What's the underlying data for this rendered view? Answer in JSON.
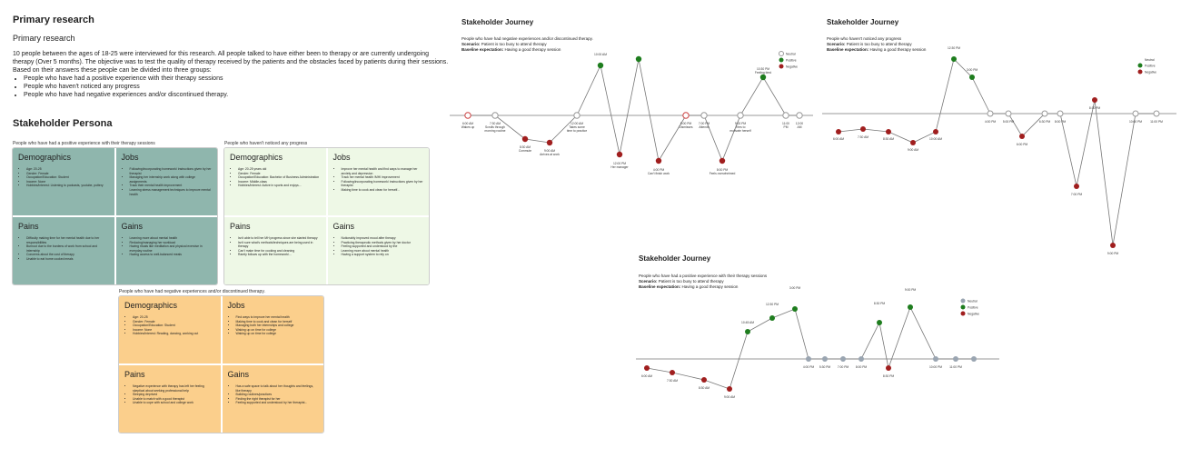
{
  "research": {
    "title": "Primary research",
    "subtitle": "Primary research",
    "intro": "10 people between the ages of 18-25 were interviewed for this research. All people talked to have either been to therapy or are currently undergoing therapy (Over 5 months). The objective was to test the quality of therapy received by the patients and the obstacles faced by patients during their sessions. Based on their answers these people can be divided into three groups:",
    "groups": [
      "People who have had a positive experience with their therapy sessions",
      "People who haven't noticed any progress",
      "People who have had negative experiences and/or discontinued therapy."
    ]
  },
  "persona": {
    "title": "Stakeholder Persona",
    "cards": [
      {
        "caption": "People who have had a positive experience with their therapy sessions",
        "color": "#8fb6ad",
        "demographics": [
          "Age: 20-25",
          "Gender: Female",
          "Occupation/Education: Student",
          "Income: None",
          "Hobbies/Interest: Listening to podcasts, youtube, pottery"
        ],
        "jobs": [
          "Following/incorporating homework/ instructions given by her therapist",
          "Managing her internship work along with college assignments",
          "Track their mental health improvement",
          "Learning stress management techniques to improve mental health"
        ],
        "pains": [
          "Difficulty making time for her mental health due to her responsibilities",
          "Burnout due to the burdens of work from school and internship",
          "Concerns about the cost of therapy",
          "Unable to eat home cooked meals"
        ],
        "gains": [
          "Learning more about mental health",
          "Reducing/managing her workload",
          "Having rituals like meditation and physical exercise in everyday routine",
          "Having access to well-balanced meals"
        ]
      },
      {
        "caption": "People who haven't noticed any progress",
        "color": "#eef8e6",
        "demographics": [
          "Age: 20-25 years old",
          "Gender: Female",
          "Occupation/Education: Bachelor of Business Administration",
          "Income: Middle-class",
          "Hobbies/Interest: Active in sports and enjoys..."
        ],
        "jobs": [
          "Improve her mental health and find ways to manage her anxiety and depression",
          "Track her mental health /MHI improvement",
          "Following/incorporating homework/ instructions given by her therapist",
          "Making time to cook and clean for herself..."
        ],
        "pains": [
          "Isn't able to tell her MH progress since she started therapy",
          "Isn't sure what's methods/techniques are being used in therapy",
          "Can't make time for cooking and cleaning",
          "Rarely follows up with the homework/..."
        ],
        "gains": [
          "Noticeably improved mood after therapy",
          "Practicing therapeutic methods given by her doctor",
          "Feeling supported and understood by the",
          "Learning more about mental health",
          "Having a support system to rely on"
        ]
      },
      {
        "caption": "People who have had negative experiences and/or discontinued therapy.",
        "color": "#fbcf8c",
        "demographics": [
          "Age: 20-25",
          "Gender: Female",
          "Occupation/Education: Student",
          "Income: None",
          "Hobbies/Interest: Reading, dancing, working out"
        ],
        "jobs": [
          "Find ways to improve her mental health",
          "Making time to cook and clean for herself",
          "Managing both her internships and college",
          "Waking up on time for college",
          "Waking up on time for college"
        ],
        "pains": [
          "Negative experience with therapy has left her feeling skeptical about seeking professional help",
          "Sleeping deprived",
          "Unable to match with a good therapist",
          "Unable to cope with school and college work"
        ],
        "gains": [
          "Has a safe space to talk about her thoughts and feelings, like therapy",
          "Building routines/practices",
          "Finding the right therapist for her",
          "Feeling supported and understood by her therapist..."
        ]
      }
    ],
    "labels": {
      "demographics": "Demographics",
      "jobs": "Jobs",
      "pains": "Pains",
      "gains": "Gains"
    }
  },
  "journeys": {
    "title": "Stakeholder Journey",
    "legend": {
      "neutral": "Neutral",
      "positive": "Positive",
      "negative": "Negative"
    },
    "colors": {
      "neutral": "#ffffff",
      "positive": "#1e7d1e",
      "negative": "#a01e1e",
      "neutral_filled": "#9aa5b1"
    },
    "scenario_label": "Scenario:",
    "scenario": "Patient is too busy to  attend therapy",
    "baseline_label": "Baseline expectation:",
    "baseline": "Having a good therapy session",
    "negative_group": "People who have had negative experiences and/or discontinued therapy.",
    "progress_group": "People who haven't noticed any progress",
    "positive_group": "People who have had a positive experience with their therapy sessions"
  }
}
